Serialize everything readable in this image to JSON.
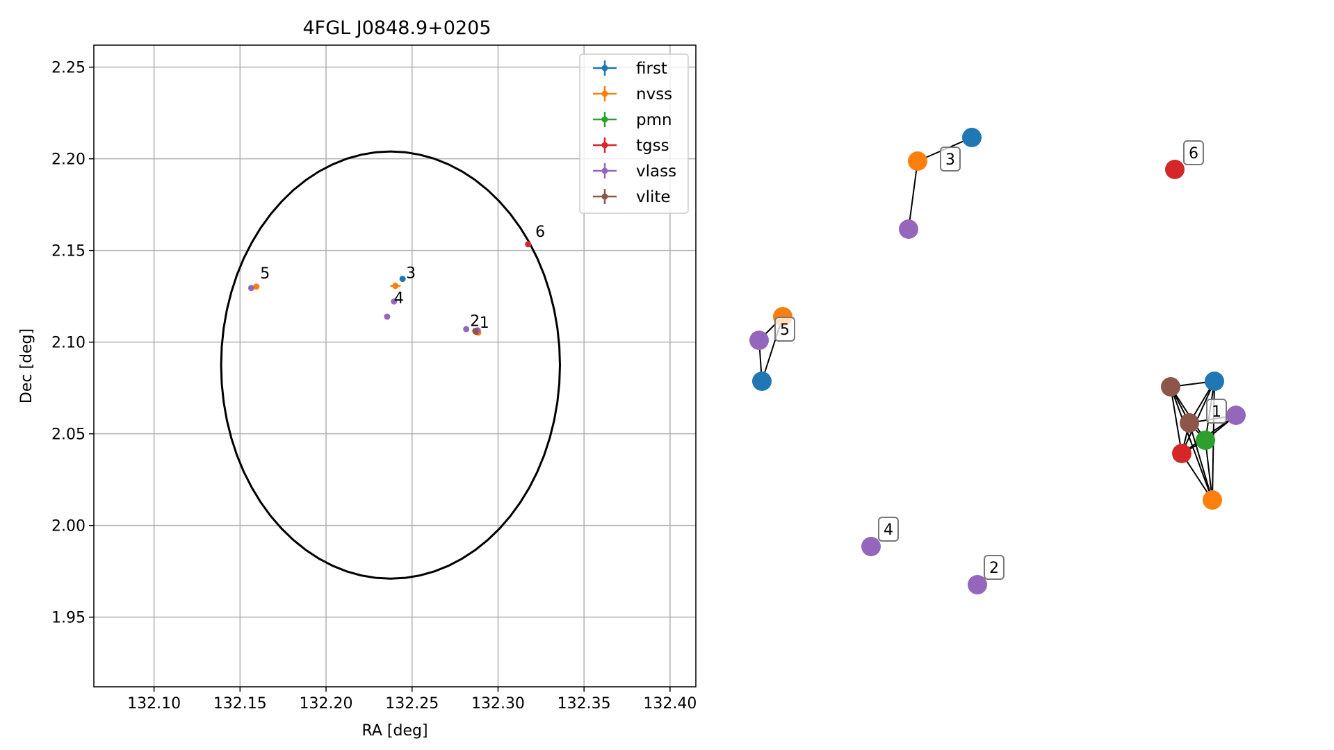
{
  "chart_data": [
    {
      "type": "scatter",
      "title": "4FGL J0848.9+0205",
      "xlabel": "RA [deg]",
      "ylabel": "Dec [deg]",
      "xlim": [
        132.065,
        132.415
      ],
      "ylim": [
        1.912,
        2.262
      ],
      "xticks": [
        "132.10",
        "132.15",
        "132.20",
        "132.25",
        "132.30",
        "132.35",
        "132.40"
      ],
      "yticks": [
        "1.95",
        "2.00",
        "2.05",
        "2.10",
        "2.15",
        "2.20",
        "2.25"
      ],
      "grid": true,
      "legend_position": "top-right",
      "series": [
        {
          "name": "first",
          "color": "#1f77b4",
          "points": [
            {
              "x": 132.2445,
              "y": 2.1345,
              "ex": 0.0008,
              "ey": 0.0008
            },
            {
              "x": 132.2875,
              "y": 2.1062,
              "ex": 0.0006,
              "ey": 0.0006
            }
          ]
        },
        {
          "name": "nvss",
          "color": "#ff7f0e",
          "points": [
            {
              "x": 132.2403,
              "y": 2.1307,
              "ex": 0.003,
              "ey": 0.0018
            },
            {
              "x": 132.1595,
              "y": 2.1303,
              "ex": 0.0015,
              "ey": 0.0012
            },
            {
              "x": 132.2885,
              "y": 2.1052,
              "ex": 0.0006,
              "ey": 0.0006
            }
          ]
        },
        {
          "name": "pmn",
          "color": "#2ca02c",
          "points": [
            {
              "x": 132.2875,
              "y": 2.1058,
              "ex": 0.0004,
              "ey": 0.0004
            }
          ]
        },
        {
          "name": "tgss",
          "color": "#d62728",
          "points": [
            {
              "x": 132.3175,
              "y": 2.1534,
              "ex": 0.0006,
              "ey": 0.0006
            },
            {
              "x": 132.2872,
              "y": 2.1057,
              "ex": 0.0004,
              "ey": 0.0004
            }
          ]
        },
        {
          "name": "vlass",
          "color": "#9467bd",
          "points": [
            {
              "x": 132.2395,
              "y": 2.1222,
              "ex": 0.0004,
              "ey": 0.0004
            },
            {
              "x": 132.2355,
              "y": 2.1139,
              "ex": 0.0004,
              "ey": 0.0004
            },
            {
              "x": 132.2815,
              "y": 2.1071,
              "ex": 0.0004,
              "ey": 0.0004
            },
            {
              "x": 132.1565,
              "y": 2.1295,
              "ex": 0.0004,
              "ey": 0.0004
            },
            {
              "x": 132.2882,
              "y": 2.1064,
              "ex": 0.0004,
              "ey": 0.0004
            }
          ]
        },
        {
          "name": "vlite",
          "color": "#8c564b",
          "points": [
            {
              "x": 132.2868,
              "y": 2.1061,
              "ex": 0.0008,
              "ey": 0.0008
            }
          ]
        }
      ],
      "annotations": [
        {
          "text": "1",
          "x": 132.2892,
          "y": 2.1078
        },
        {
          "text": "2",
          "x": 132.2837,
          "y": 2.1087
        },
        {
          "text": "3",
          "x": 132.2465,
          "y": 2.1349
        },
        {
          "text": "4",
          "x": 132.2395,
          "y": 2.1213
        },
        {
          "text": "5",
          "x": 132.1617,
          "y": 2.1347
        },
        {
          "text": "6",
          "x": 132.3217,
          "y": 2.1574
        }
      ],
      "ellipse": {
        "center": [
          132.2375,
          2.0875
        ],
        "semi_axes": [
          0.0985,
          0.1165
        ],
        "color": "#000000"
      }
    },
    {
      "type": "network",
      "nodes": [
        {
          "id": "a",
          "color": "#1f77b4"
        },
        {
          "id": "b",
          "color": "#ff7f0e"
        },
        {
          "id": "c",
          "color": "#9467bd"
        },
        {
          "id": "d",
          "color": "#d62728"
        },
        {
          "id": "e",
          "color": "#ff7f0e"
        },
        {
          "id": "f",
          "color": "#9467bd"
        },
        {
          "id": "g",
          "color": "#1f77b4"
        },
        {
          "id": "h",
          "color": "#8c564b"
        },
        {
          "id": "i",
          "color": "#1f77b4"
        },
        {
          "id": "j",
          "color": "#8c564b"
        },
        {
          "id": "k",
          "color": "#9467bd"
        },
        {
          "id": "l",
          "color": "#2ca02c"
        },
        {
          "id": "m",
          "color": "#d62728"
        },
        {
          "id": "n",
          "color": "#ff7f0e"
        },
        {
          "id": "o",
          "color": "#9467bd"
        },
        {
          "id": "p",
          "color": "#9467bd"
        }
      ],
      "edges": [
        [
          "a",
          "b"
        ],
        [
          "b",
          "c"
        ],
        [
          "e",
          "f"
        ],
        [
          "f",
          "g"
        ],
        [
          "e",
          "g"
        ],
        [
          "h",
          "i"
        ],
        [
          "h",
          "j"
        ],
        [
          "h",
          "l"
        ],
        [
          "h",
          "m"
        ],
        [
          "h",
          "n"
        ],
        [
          "i",
          "j"
        ],
        [
          "i",
          "l"
        ],
        [
          "i",
          "m"
        ],
        [
          "i",
          "n"
        ],
        [
          "j",
          "k"
        ],
        [
          "j",
          "l"
        ],
        [
          "j",
          "m"
        ],
        [
          "j",
          "n"
        ],
        [
          "k",
          "l"
        ],
        [
          "k",
          "m"
        ],
        [
          "l",
          "m"
        ],
        [
          "l",
          "n"
        ],
        [
          "m",
          "n"
        ]
      ],
      "labels": [
        {
          "text": "3",
          "node": "b"
        },
        {
          "text": "6",
          "node": "d"
        },
        {
          "text": "5",
          "node": "e"
        },
        {
          "text": "1",
          "node": "j"
        },
        {
          "text": "4",
          "node": "o"
        },
        {
          "text": "2",
          "node": "p"
        }
      ]
    }
  ]
}
